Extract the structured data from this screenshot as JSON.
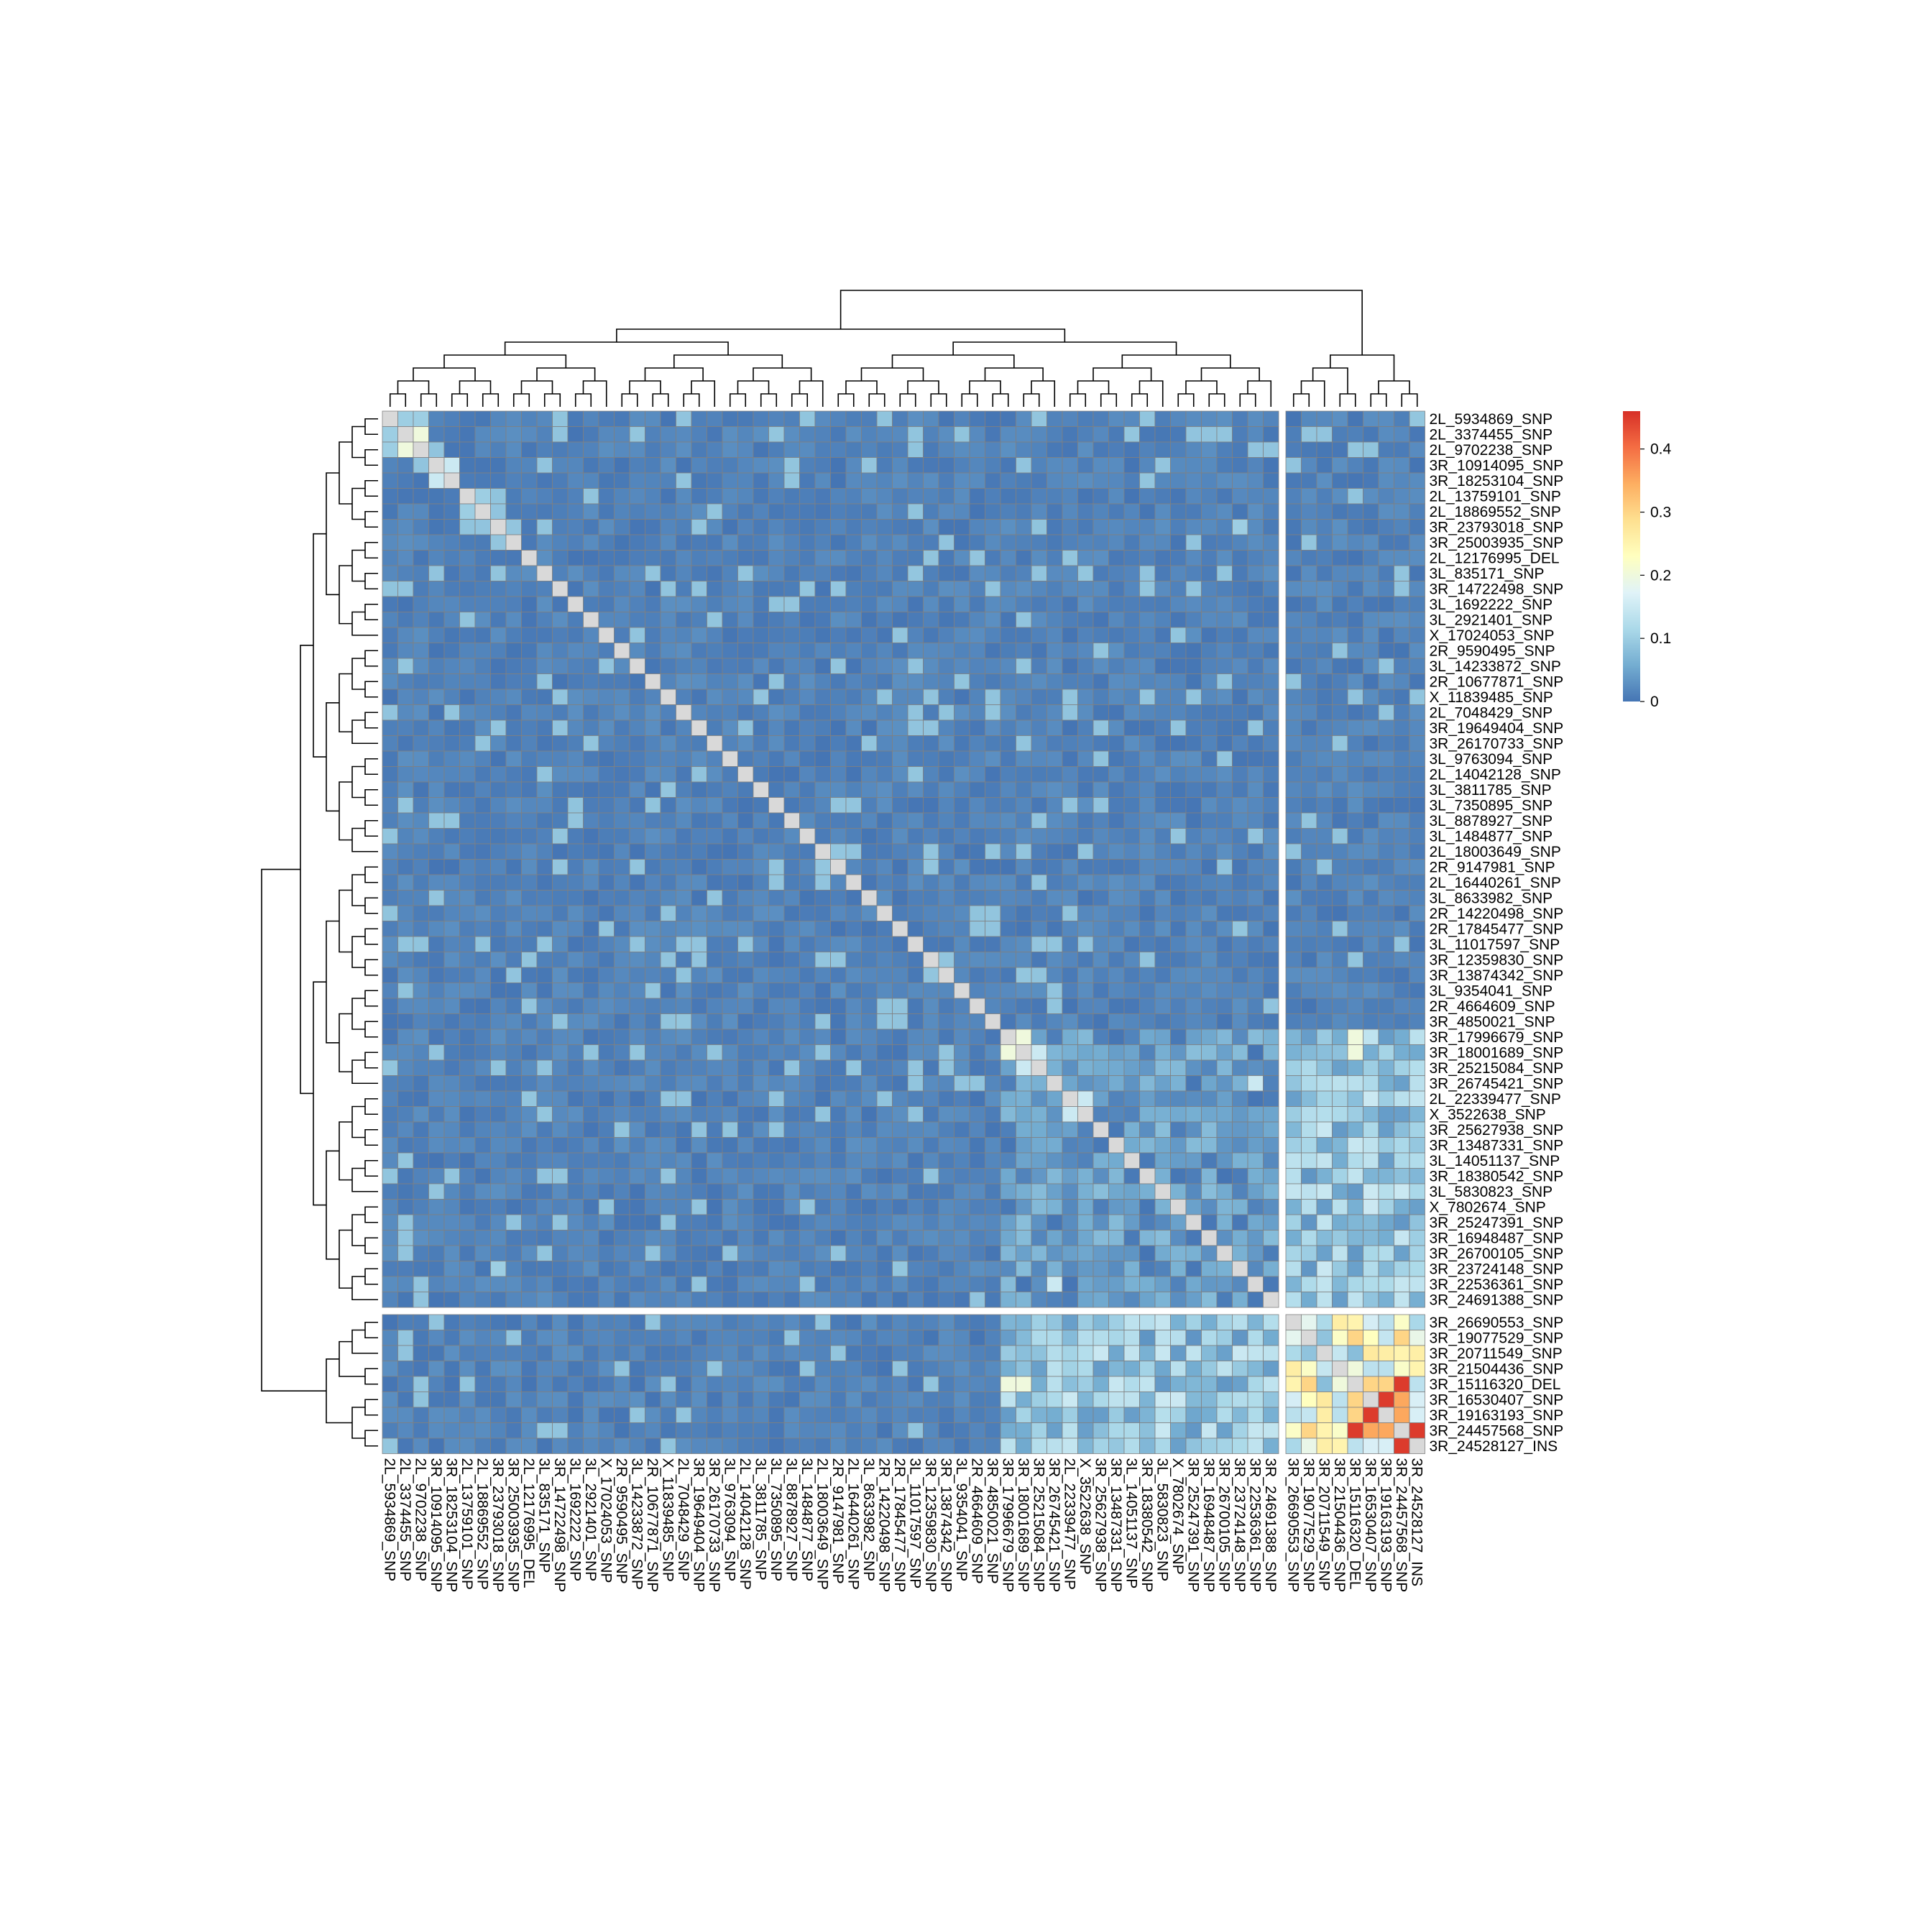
{
  "chart_data": {
    "type": "heatmap",
    "title": "",
    "xlabel": "",
    "ylabel": "",
    "labels": [
      "2L_5934869_SNP",
      "2L_3374455_SNP",
      "2L_9702238_SNP",
      "3R_10914095_SNP",
      "3R_18253104_SNP",
      "2L_13759101_SNP",
      "2L_18869552_SNP",
      "3R_23793018_SNP",
      "3R_25003935_SNP",
      "2L_12176995_DEL",
      "3L_835171_SNP",
      "3R_14722498_SNP",
      "3L_1692222_SNP",
      "3L_2921401_SNP",
      "X_17024053_SNP",
      "2R_9590495_SNP",
      "3L_14233872_SNP",
      "2R_10677871_SNP",
      "X_11839485_SNP",
      "2L_7048429_SNP",
      "3R_19649404_SNP",
      "3R_26170733_SNP",
      "3L_9763094_SNP",
      "2L_14042128_SNP",
      "3L_3811785_SNP",
      "3L_7350895_SNP",
      "3L_8878927_SNP",
      "3L_1484877_SNP",
      "2L_18003649_SNP",
      "2R_9147981_SNP",
      "2L_16440261_SNP",
      "3L_8633982_SNP",
      "2R_14220498_SNP",
      "2R_17845477_SNP",
      "3L_11017597_SNP",
      "3R_12359830_SNP",
      "3R_13874342_SNP",
      "3L_9354041_SNP",
      "2R_4664609_SNP",
      "3R_4850021_SNP",
      "3R_17996679_SNP",
      "3R_18001689_SNP",
      "3R_25215084_SNP",
      "3R_26745421_SNP",
      "2L_22339477_SNP",
      "X_3522638_SNP",
      "3R_25627938_SNP",
      "3R_13487331_SNP",
      "3L_14051137_SNP",
      "3R_18380542_SNP",
      "3L_5830823_SNP",
      "X_7802674_SNP",
      "3R_25247391_SNP",
      "3R_16948487_SNP",
      "3R_26700105_SNP",
      "3R_23724148_SNP",
      "3R_22536361_SNP",
      "3R_24691388_SNP",
      "3R_26690553_SNP",
      "3R_19077529_SNP",
      "3R_20711549_SNP",
      "3R_21504436_SNP",
      "3R_15116320_DEL",
      "3R_16530407_SNP",
      "3R_19163193_SNP",
      "3R_24457568_SNP",
      "3R_24528127_INS"
    ],
    "row_split_after": 58,
    "col_split_after": 58,
    "diagonal": "NA",
    "highlights": [
      {
        "a": "2L_5934869_SNP",
        "b": "2L_3374455_SNP",
        "value": 0.1
      },
      {
        "a": "2L_5934869_SNP",
        "b": "2L_9702238_SNP",
        "value": 0.1
      },
      {
        "a": "2L_3374455_SNP",
        "b": "2L_9702238_SNP",
        "value": 0.2
      },
      {
        "a": "3R_10914095_SNP",
        "b": "3R_18253104_SNP",
        "value": 0.15
      },
      {
        "a": "2L_13759101_SNP",
        "b": "2L_18869552_SNP",
        "value": 0.1
      },
      {
        "a": "3R_23793018_SNP",
        "b": "3R_23724148_SNP",
        "value": 0.1
      },
      {
        "a": "3R_17996679_SNP",
        "b": "3R_18001689_SNP",
        "value": 0.2
      },
      {
        "a": "3R_18001689_SNP",
        "b": "3R_25215084_SNP",
        "value": 0.15
      },
      {
        "a": "3R_26745421_SNP",
        "b": "3R_22536361_SNP",
        "value": 0.15
      },
      {
        "a": "2L_22339477_SNP",
        "b": "X_3522638_SNP",
        "value": 0.15
      },
      {
        "a": "3R_17996679_SNP",
        "b": "3R_15116320_DEL",
        "value": 0.2
      },
      {
        "a": "3R_18001689_SNP",
        "b": "3R_15116320_DEL",
        "value": 0.2
      },
      {
        "a": "3R_26690553_SNP",
        "b": "3R_15116320_DEL",
        "value": 0.25
      },
      {
        "a": "3R_19077529_SNP",
        "b": "3R_15116320_DEL",
        "value": 0.3
      },
      {
        "a": "3R_19077529_SNP",
        "b": "3R_24457568_SNP",
        "value": 0.3
      },
      {
        "a": "3R_15116320_DEL",
        "b": "3R_16530407_SNP",
        "value": 0.3
      },
      {
        "a": "3R_15116320_DEL",
        "b": "3R_19163193_SNP",
        "value": 0.3
      },
      {
        "a": "3R_15116320_DEL",
        "b": "3R_24457568_SNP",
        "value": 0.45
      },
      {
        "a": "3R_16530407_SNP",
        "b": "3R_19163193_SNP",
        "value": 0.45
      },
      {
        "a": "3R_16530407_SNP",
        "b": "3R_24457568_SNP",
        "value": 0.35
      },
      {
        "a": "3R_19163193_SNP",
        "b": "3R_24457568_SNP",
        "value": 0.35
      },
      {
        "a": "3R_24457568_SNP",
        "b": "3R_24528127_INS",
        "value": 0.45
      },
      {
        "a": "3R_21504436_SNP",
        "b": "3R_24528127_INS",
        "value": 0.25
      },
      {
        "a": "3R_20711549_SNP",
        "b": "3R_24457568_SNP",
        "value": 0.25
      }
    ],
    "colorbar": {
      "ticks": [
        0,
        0.1,
        0.2,
        0.3,
        0.4
      ],
      "tick_labels": [
        "0",
        "0.1",
        "0.2",
        "0.3",
        "0.4"
      ],
      "range": [
        0,
        0.46
      ],
      "colors": [
        "#4575b4",
        "#74add1",
        "#abd9e9",
        "#e0f3f8",
        "#ffffbf",
        "#fee090",
        "#fdae61",
        "#f46d43",
        "#d73027"
      ]
    },
    "na_color": "#d9d9d9",
    "grid_color": "#808080",
    "dendrograms": {
      "rows": true,
      "columns": true
    }
  }
}
